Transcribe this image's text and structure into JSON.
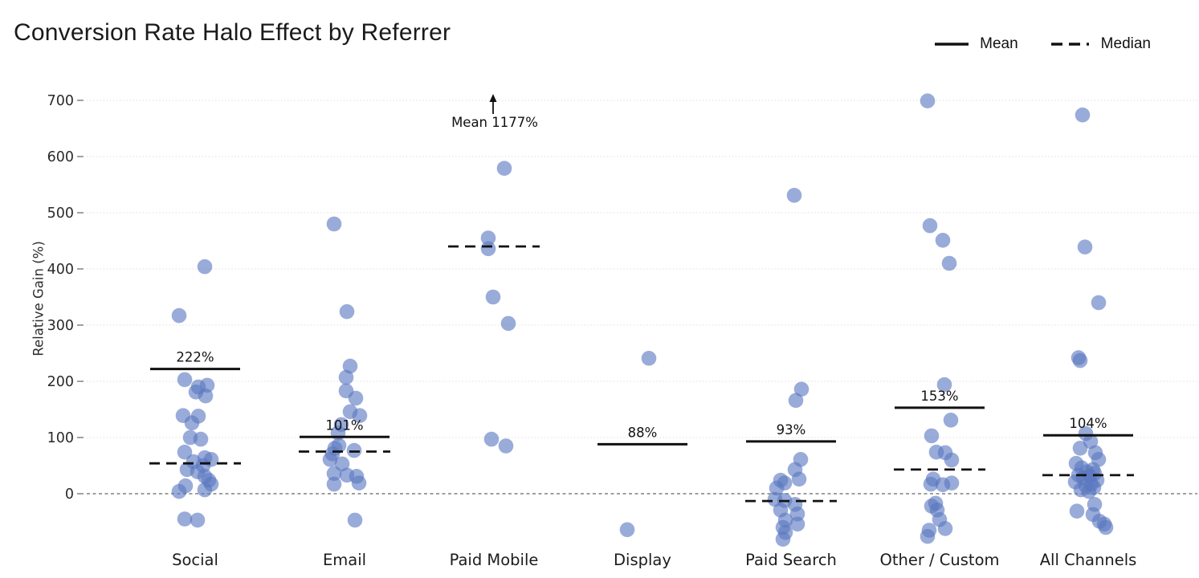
{
  "title": "Conversion Rate Halo Effect by Referrer",
  "legend": {
    "mean_label": "Mean",
    "median_label": "Median"
  },
  "colors": {
    "dot": "#5b78c0",
    "dot_opacity": 0.62,
    "stat_line": "#111111",
    "grid": "#dcdcd4",
    "zero_line": "#666666",
    "text": "#1a1a1a"
  },
  "chart_data": {
    "type": "scatter",
    "subtype": "strip-jitter",
    "title": "Conversion Rate Halo Effect by Referrer",
    "xlabel": "",
    "ylabel": "Relative Gain (%)",
    "ylim": [
      -100,
      740
    ],
    "yticks": [
      0,
      100,
      200,
      300,
      400,
      500,
      600,
      700
    ],
    "grid": true,
    "zero_line_dashed": true,
    "legend_position": "top-right",
    "categories": [
      {
        "label": "Social",
        "mean": 222,
        "mean_label": "222%",
        "mean_offscale": false,
        "median": 54,
        "points": [
          [
            404,
            12
          ],
          [
            317,
            -20
          ],
          [
            203,
            -13
          ],
          [
            193,
            15
          ],
          [
            190,
            4
          ],
          [
            181,
            1
          ],
          [
            174,
            13
          ],
          [
            139,
            -15
          ],
          [
            138,
            4
          ],
          [
            126,
            -4
          ],
          [
            100,
            -6
          ],
          [
            97,
            7
          ],
          [
            74,
            -13
          ],
          [
            64,
            12
          ],
          [
            61,
            20
          ],
          [
            57,
            -2
          ],
          [
            50,
            10
          ],
          [
            43,
            -10
          ],
          [
            39,
            3
          ],
          [
            31,
            12
          ],
          [
            24,
            17
          ],
          [
            17,
            20
          ],
          [
            14,
            -12
          ],
          [
            7,
            12
          ],
          [
            4,
            -20
          ],
          [
            -45,
            -13
          ],
          [
            -47,
            3
          ]
        ]
      },
      {
        "label": "Email",
        "mean": 101,
        "mean_label": "101%",
        "mean_offscale": false,
        "median": 75,
        "points": [
          [
            480,
            -13
          ],
          [
            324,
            3
          ],
          [
            227,
            7
          ],
          [
            207,
            2
          ],
          [
            183,
            2
          ],
          [
            170,
            14
          ],
          [
            146,
            7
          ],
          [
            139,
            19
          ],
          [
            123,
            -4
          ],
          [
            108,
            -8
          ],
          [
            86,
            -7
          ],
          [
            81,
            -12
          ],
          [
            77,
            12
          ],
          [
            71,
            -15
          ],
          [
            61,
            -18
          ],
          [
            53,
            -3
          ],
          [
            36,
            -13
          ],
          [
            33,
            3
          ],
          [
            31,
            15
          ],
          [
            19,
            18
          ],
          [
            17,
            -13
          ],
          [
            -47,
            13
          ]
        ]
      },
      {
        "label": "Paid Mobile",
        "mean": 1177,
        "mean_label": "Mean 1177%",
        "mean_offscale": true,
        "median": 440,
        "points": [
          [
            579,
            13
          ],
          [
            455,
            -7
          ],
          [
            436,
            -7
          ],
          [
            350,
            -1
          ],
          [
            303,
            18
          ],
          [
            97,
            -3
          ],
          [
            85,
            15
          ]
        ]
      },
      {
        "label": "Display",
        "mean": 88,
        "mean_label": "88%",
        "mean_offscale": false,
        "median": null,
        "points": [
          [
            241,
            8
          ],
          [
            -64,
            -19
          ]
        ]
      },
      {
        "label": "Paid Search",
        "mean": 93,
        "mean_label": "93%",
        "mean_offscale": false,
        "median": -13,
        "points": [
          [
            531,
            4
          ],
          [
            186,
            13
          ],
          [
            166,
            6
          ],
          [
            61,
            12
          ],
          [
            43,
            5
          ],
          [
            26,
            10
          ],
          [
            24,
            -13
          ],
          [
            19,
            -8
          ],
          [
            10,
            -18
          ],
          [
            -10,
            -20
          ],
          [
            -12,
            -8
          ],
          [
            -19,
            5
          ],
          [
            -29,
            -13
          ],
          [
            -36,
            8
          ],
          [
            -47,
            -7
          ],
          [
            -54,
            8
          ],
          [
            -60,
            -10
          ],
          [
            -69,
            -7
          ],
          [
            -81,
            -10
          ]
        ]
      },
      {
        "label": "Other / Custom",
        "mean": 153,
        "mean_label": "153%",
        "mean_offscale": false,
        "median": 43,
        "points": [
          [
            699,
            -15
          ],
          [
            477,
            -12
          ],
          [
            451,
            4
          ],
          [
            410,
            12
          ],
          [
            194,
            6
          ],
          [
            131,
            14
          ],
          [
            103,
            -10
          ],
          [
            74,
            -4
          ],
          [
            73,
            7
          ],
          [
            60,
            15
          ],
          [
            26,
            -8
          ],
          [
            19,
            15
          ],
          [
            17,
            -11
          ],
          [
            16,
            4
          ],
          [
            -17,
            -5
          ],
          [
            -22,
            -10
          ],
          [
            -29,
            -3
          ],
          [
            -46,
            0
          ],
          [
            -62,
            7
          ],
          [
            -65,
            -13
          ],
          [
            -76,
            -15
          ]
        ]
      },
      {
        "label": "All Channels",
        "mean": 104,
        "mean_label": "104%",
        "mean_offscale": false,
        "median": 33,
        "points": [
          [
            674,
            -7
          ],
          [
            439,
            -4
          ],
          [
            340,
            13
          ],
          [
            242,
            -12
          ],
          [
            237,
            -10
          ],
          [
            107,
            -3
          ],
          [
            93,
            3
          ],
          [
            81,
            -10
          ],
          [
            73,
            9
          ],
          [
            61,
            13
          ],
          [
            54,
            -15
          ],
          [
            46,
            -8
          ],
          [
            43,
            6
          ],
          [
            39,
            -2
          ],
          [
            36,
            8
          ],
          [
            33,
            -12
          ],
          [
            31,
            2
          ],
          [
            28,
            -6
          ],
          [
            24,
            11
          ],
          [
            21,
            -16
          ],
          [
            17,
            4
          ],
          [
            14,
            -3
          ],
          [
            11,
            7
          ],
          [
            7,
            -9
          ],
          [
            4,
            1
          ],
          [
            -19,
            8
          ],
          [
            -31,
            -14
          ],
          [
            -37,
            6
          ],
          [
            -49,
            14
          ],
          [
            -54,
            20
          ],
          [
            -60,
            22
          ]
        ]
      }
    ]
  }
}
